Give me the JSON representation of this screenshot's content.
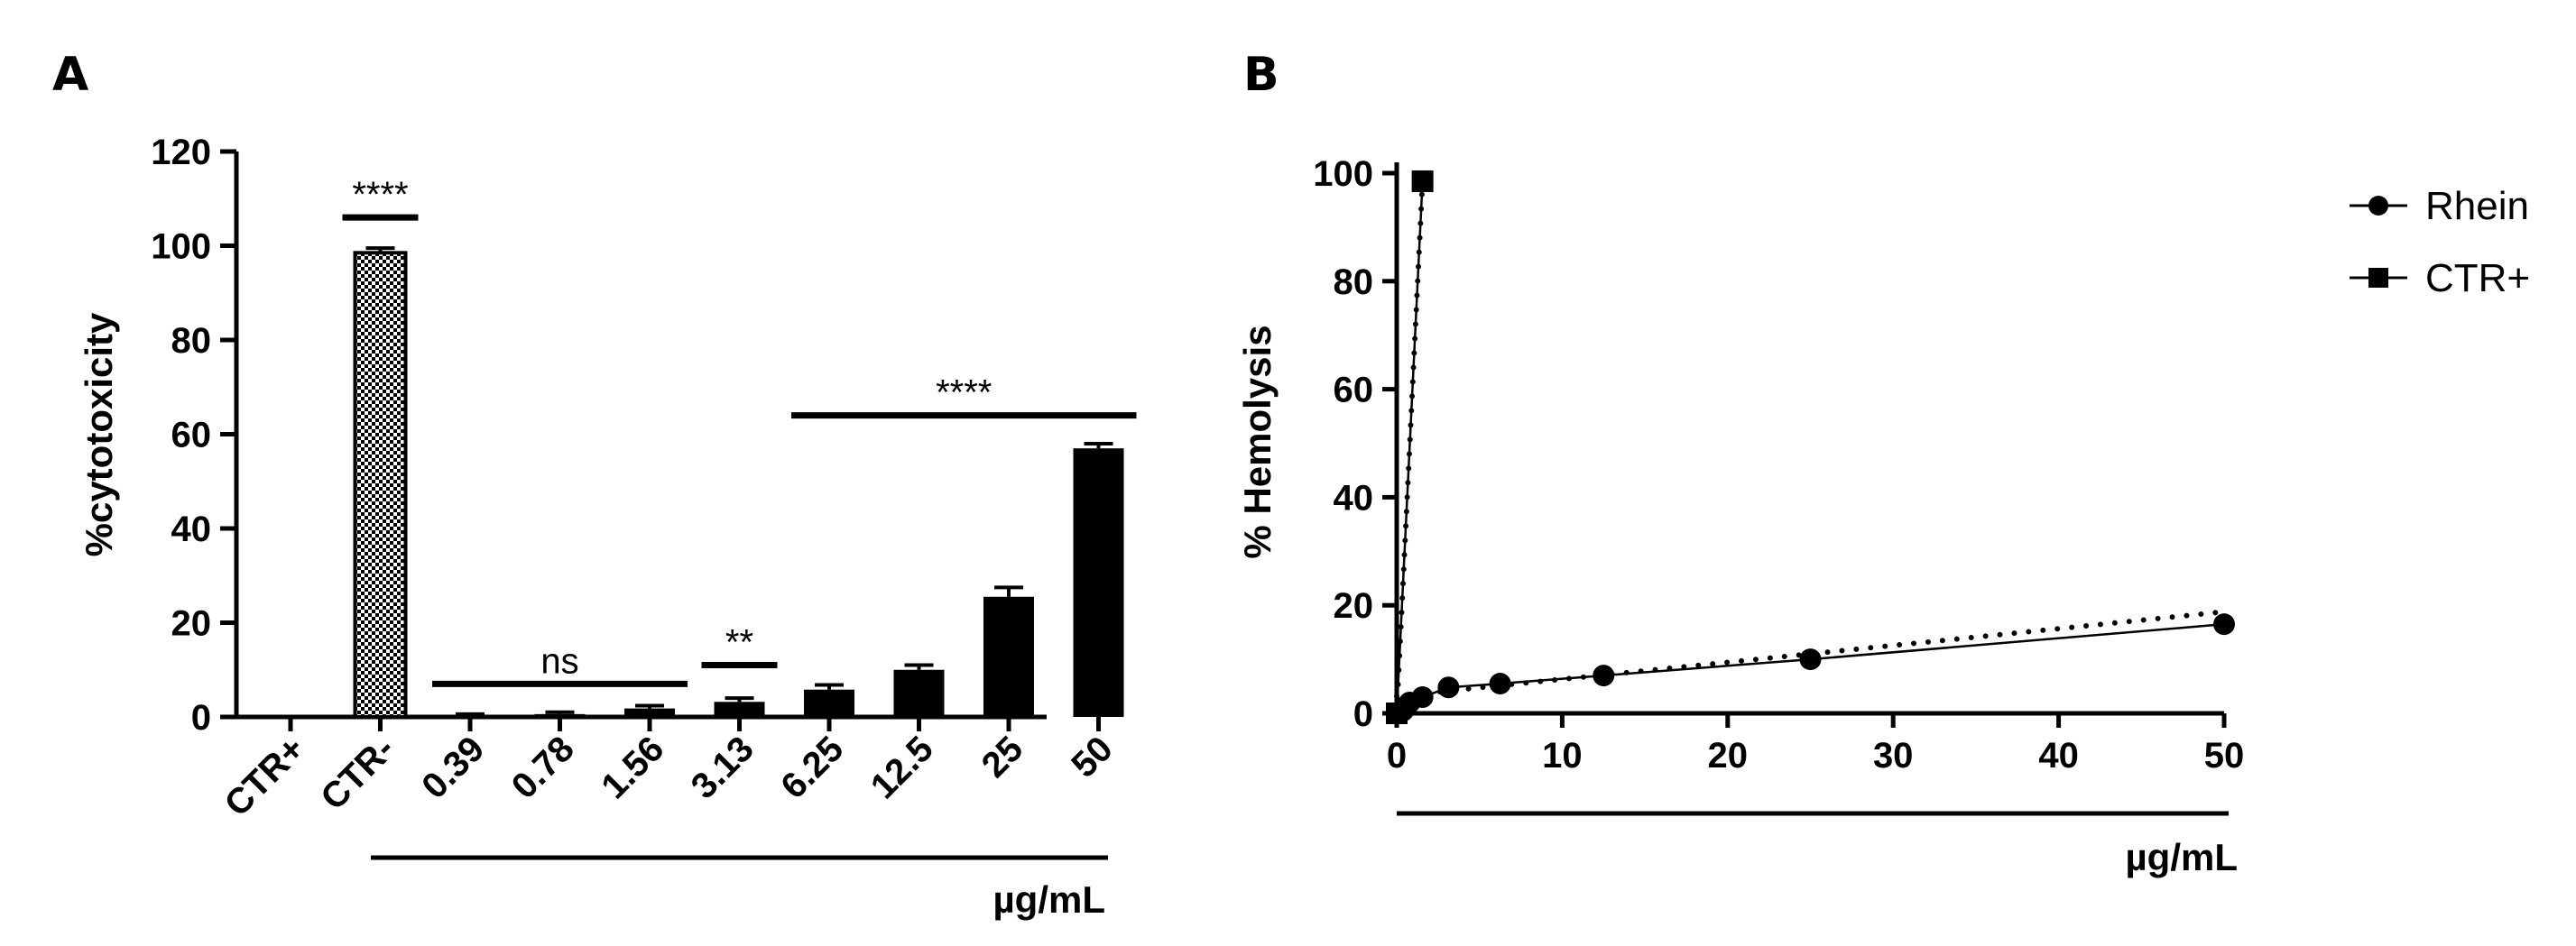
{
  "chart_data": [
    {
      "panel": "A",
      "type": "bar",
      "ylabel": "%cytotoxicity",
      "xlabel": "µg/mL",
      "ylim": [
        0,
        120
      ],
      "yticks": [
        0,
        20,
        40,
        60,
        80,
        100,
        120
      ],
      "categories": [
        "CTR+",
        "CTR-",
        "0.39",
        "0.78",
        "1.56",
        "3.13",
        "6.25",
        "12.5",
        "25",
        "50"
      ],
      "values": [
        0,
        98.5,
        0.3,
        0.6,
        1.8,
        3.2,
        5.8,
        10.0,
        25.5,
        57.0
      ],
      "errors": [
        0,
        1.0,
        0.3,
        0.4,
        0.6,
        0.8,
        1.0,
        1.0,
        2.0,
        1.0
      ],
      "patterned_category": "CTR-",
      "grid": false,
      "annotations": [
        {
          "text": "****",
          "from": "CTR-",
          "to": "CTR-",
          "y": 106
        },
        {
          "text": "ns",
          "from": "0.39",
          "to": "1.56",
          "y": 7
        },
        {
          "text": "**",
          "from": "3.13",
          "to": "3.13",
          "y": 11
        },
        {
          "text": "****",
          "from": "6.25",
          "to": "50",
          "y": 64
        }
      ]
    },
    {
      "panel": "B",
      "type": "line",
      "ylabel": "% Hemolysis",
      "xlabel": "µg/mL",
      "xlim": [
        0,
        50
      ],
      "ylim": [
        0,
        100
      ],
      "xticks": [
        0,
        10,
        20,
        30,
        40,
        50
      ],
      "yticks": [
        0,
        20,
        40,
        60,
        80,
        100
      ],
      "grid": false,
      "legend_position": "right",
      "series": [
        {
          "name": "Rhein",
          "marker": "circle",
          "x": [
            0,
            0.39,
            0.78,
            1.56,
            3.13,
            6.25,
            12.5,
            25,
            50
          ],
          "y": [
            0,
            0.5,
            2.0,
            3.0,
            4.8,
            5.5,
            7.0,
            10.0,
            16.5
          ],
          "fit": {
            "x": [
              0,
              50
            ],
            "y": [
              3.2,
              18.8
            ]
          }
        },
        {
          "name": "CTR+",
          "marker": "square",
          "x": [
            0,
            1.56
          ],
          "y": [
            0,
            98.5
          ],
          "fit": {
            "x": [
              0,
              1.56
            ],
            "y": [
              0,
              98.5
            ]
          }
        }
      ]
    }
  ]
}
